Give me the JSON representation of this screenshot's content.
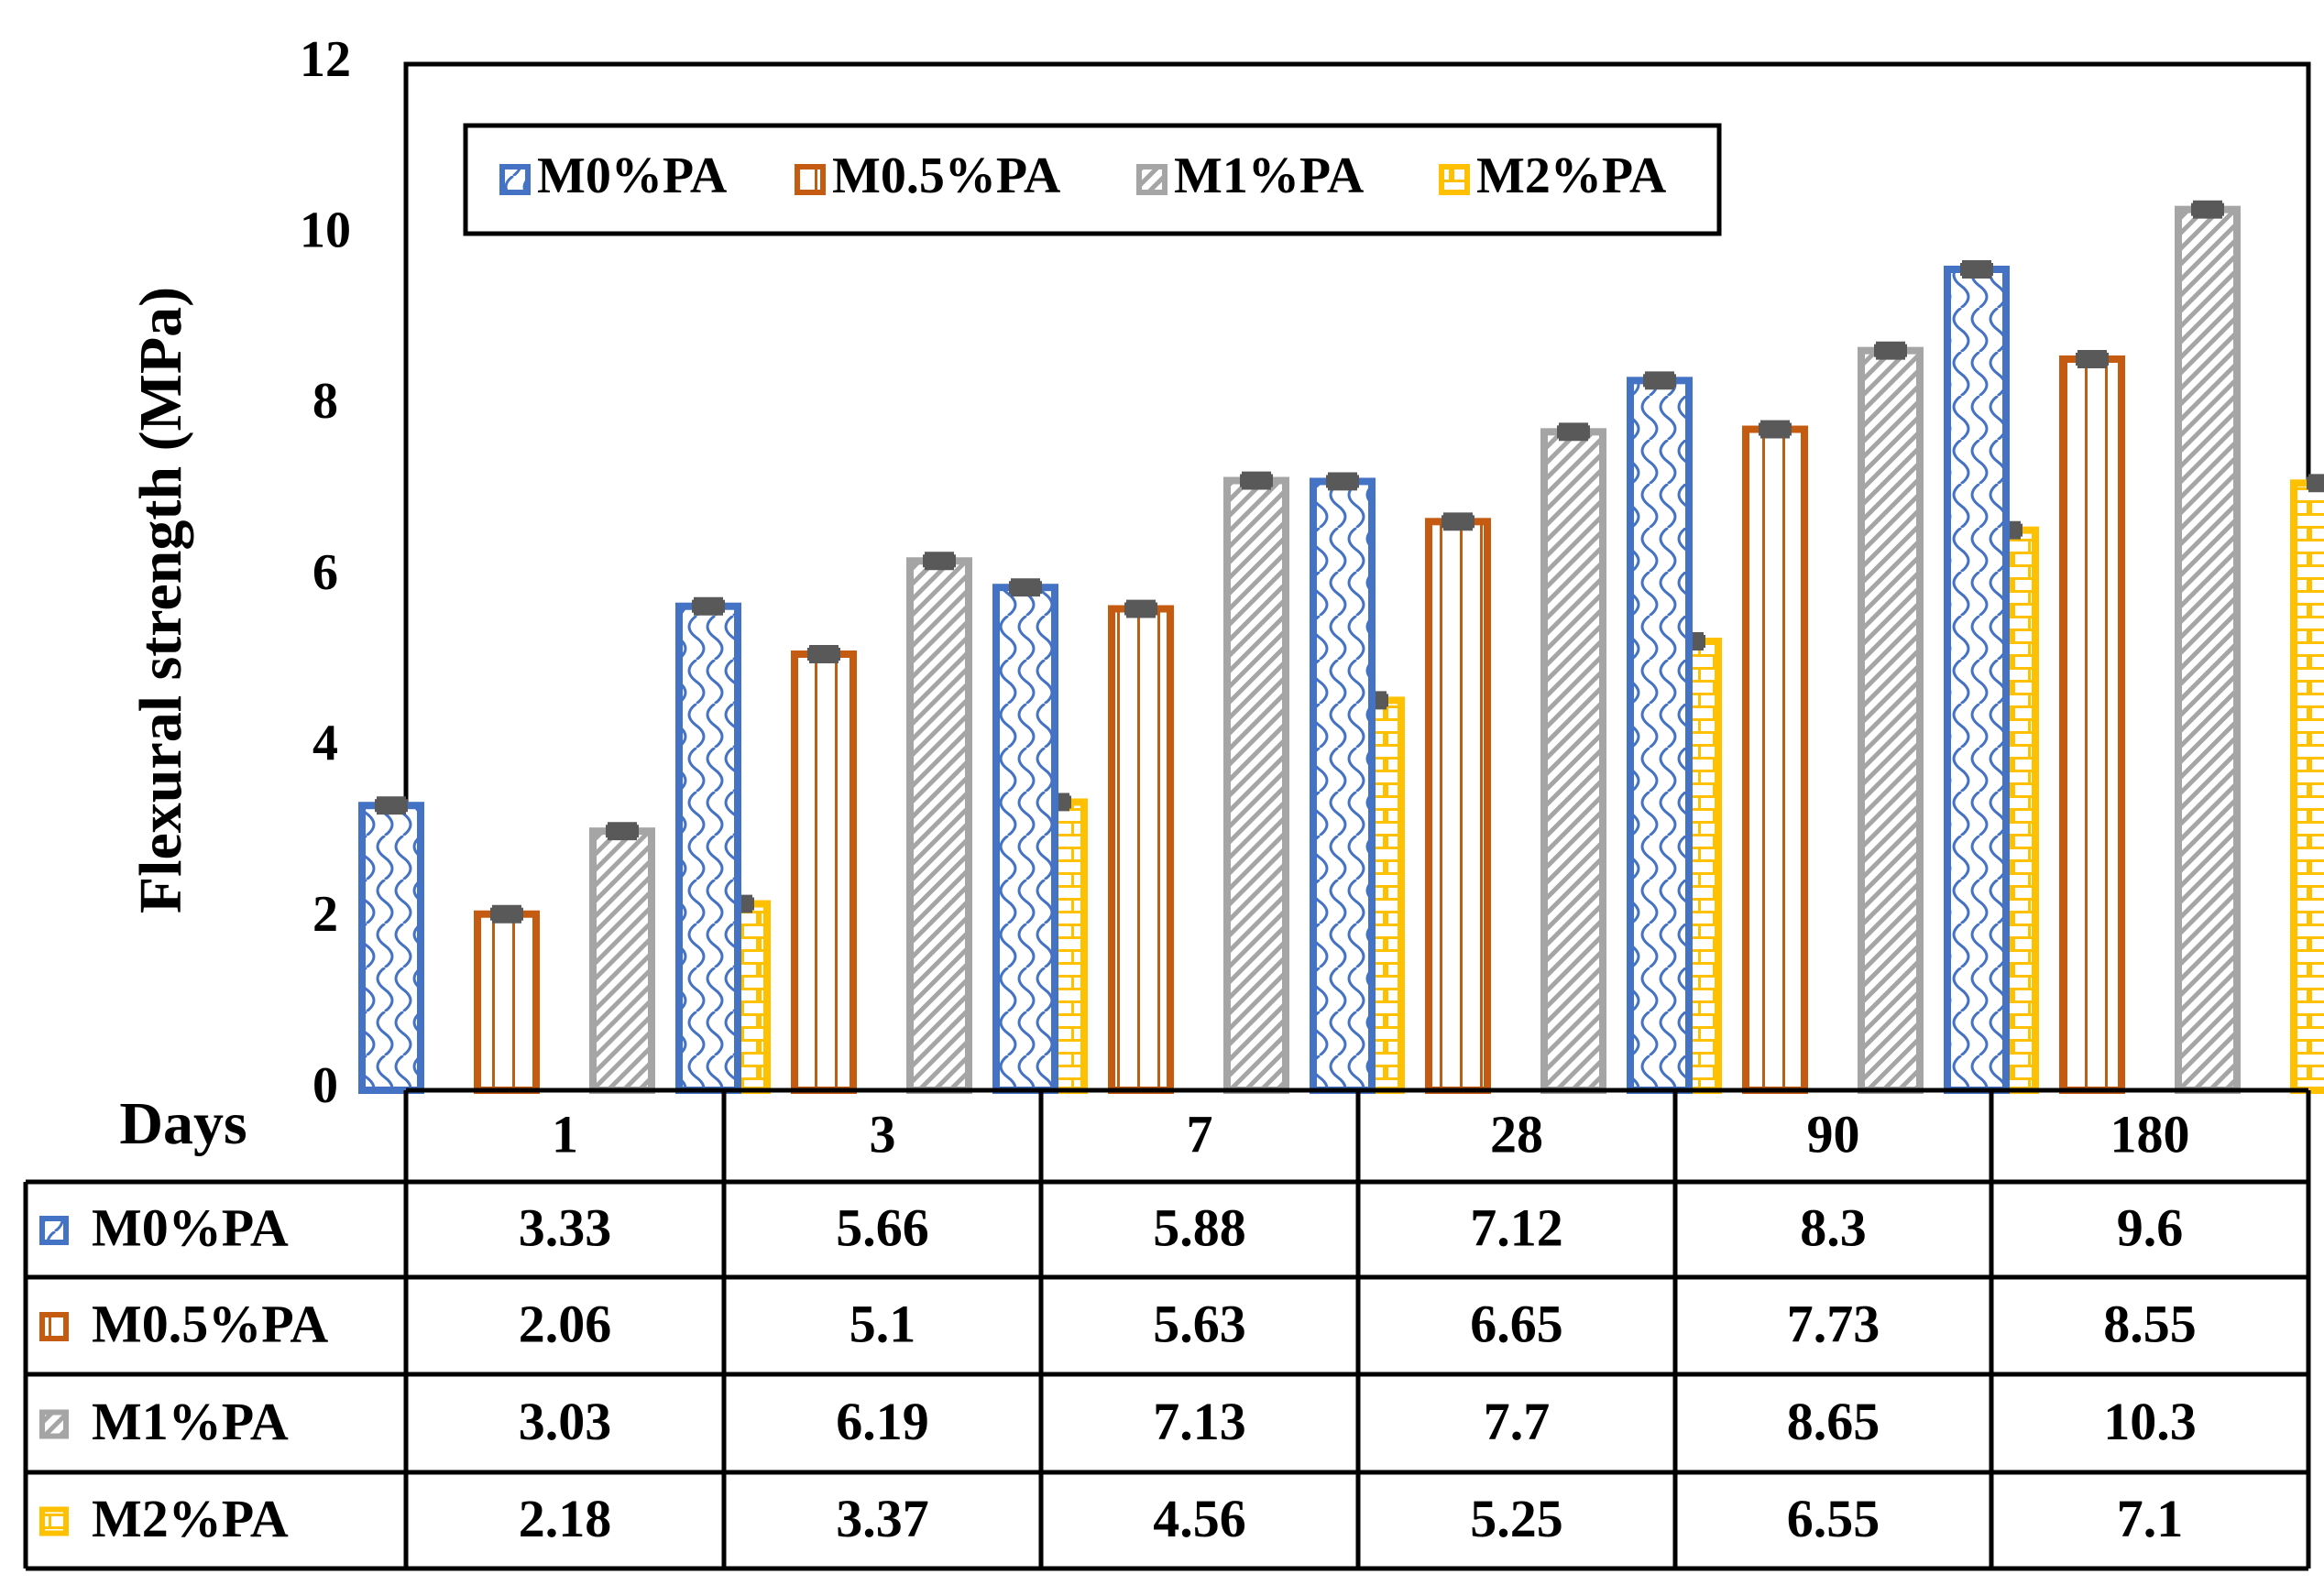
{
  "chart_data": {
    "type": "bar",
    "title": "",
    "xlabel": "Days",
    "ylabel": "Flexural strength (MPa)",
    "ylim": [
      0,
      12
    ],
    "yticks": [
      "0",
      "2",
      "4",
      "6",
      "8",
      "10",
      "12"
    ],
    "categories": [
      "1",
      "3",
      "7",
      "28",
      "90",
      "180"
    ],
    "legend_position": "top-left",
    "series": [
      {
        "name": "M0%PA",
        "color": "#4472C4",
        "pattern": "scallop",
        "values": [
          3.33,
          5.66,
          5.88,
          7.12,
          8.3,
          9.6
        ],
        "labels": [
          "3.33",
          "5.66",
          "5.88",
          "7.12",
          "8.3",
          "9.6"
        ]
      },
      {
        "name": "M0.5%PA",
        "color": "#C55A11",
        "pattern": "vertical-lines",
        "values": [
          2.06,
          5.1,
          5.63,
          6.65,
          7.73,
          8.55
        ],
        "labels": [
          "2.06",
          "5.1",
          "5.63",
          "6.65",
          "7.73",
          "8.55"
        ]
      },
      {
        "name": "M1%PA",
        "color": "#A5A5A5",
        "pattern": "diagonal-lines",
        "values": [
          3.03,
          6.19,
          7.13,
          7.7,
          8.65,
          10.3
        ],
        "labels": [
          "3.03",
          "6.19",
          "7.13",
          "7.7",
          "8.65",
          "10.3"
        ]
      },
      {
        "name": "M2%PA",
        "color": "#FFC000",
        "pattern": "bricks",
        "values": [
          2.18,
          3.37,
          4.56,
          5.25,
          6.55,
          7.1
        ],
        "labels": [
          "2.18",
          "3.37",
          "4.56",
          "5.25",
          "6.55",
          "7.1"
        ]
      }
    ],
    "error_bar_color": "#595959",
    "error_bar_value": 0.08
  }
}
